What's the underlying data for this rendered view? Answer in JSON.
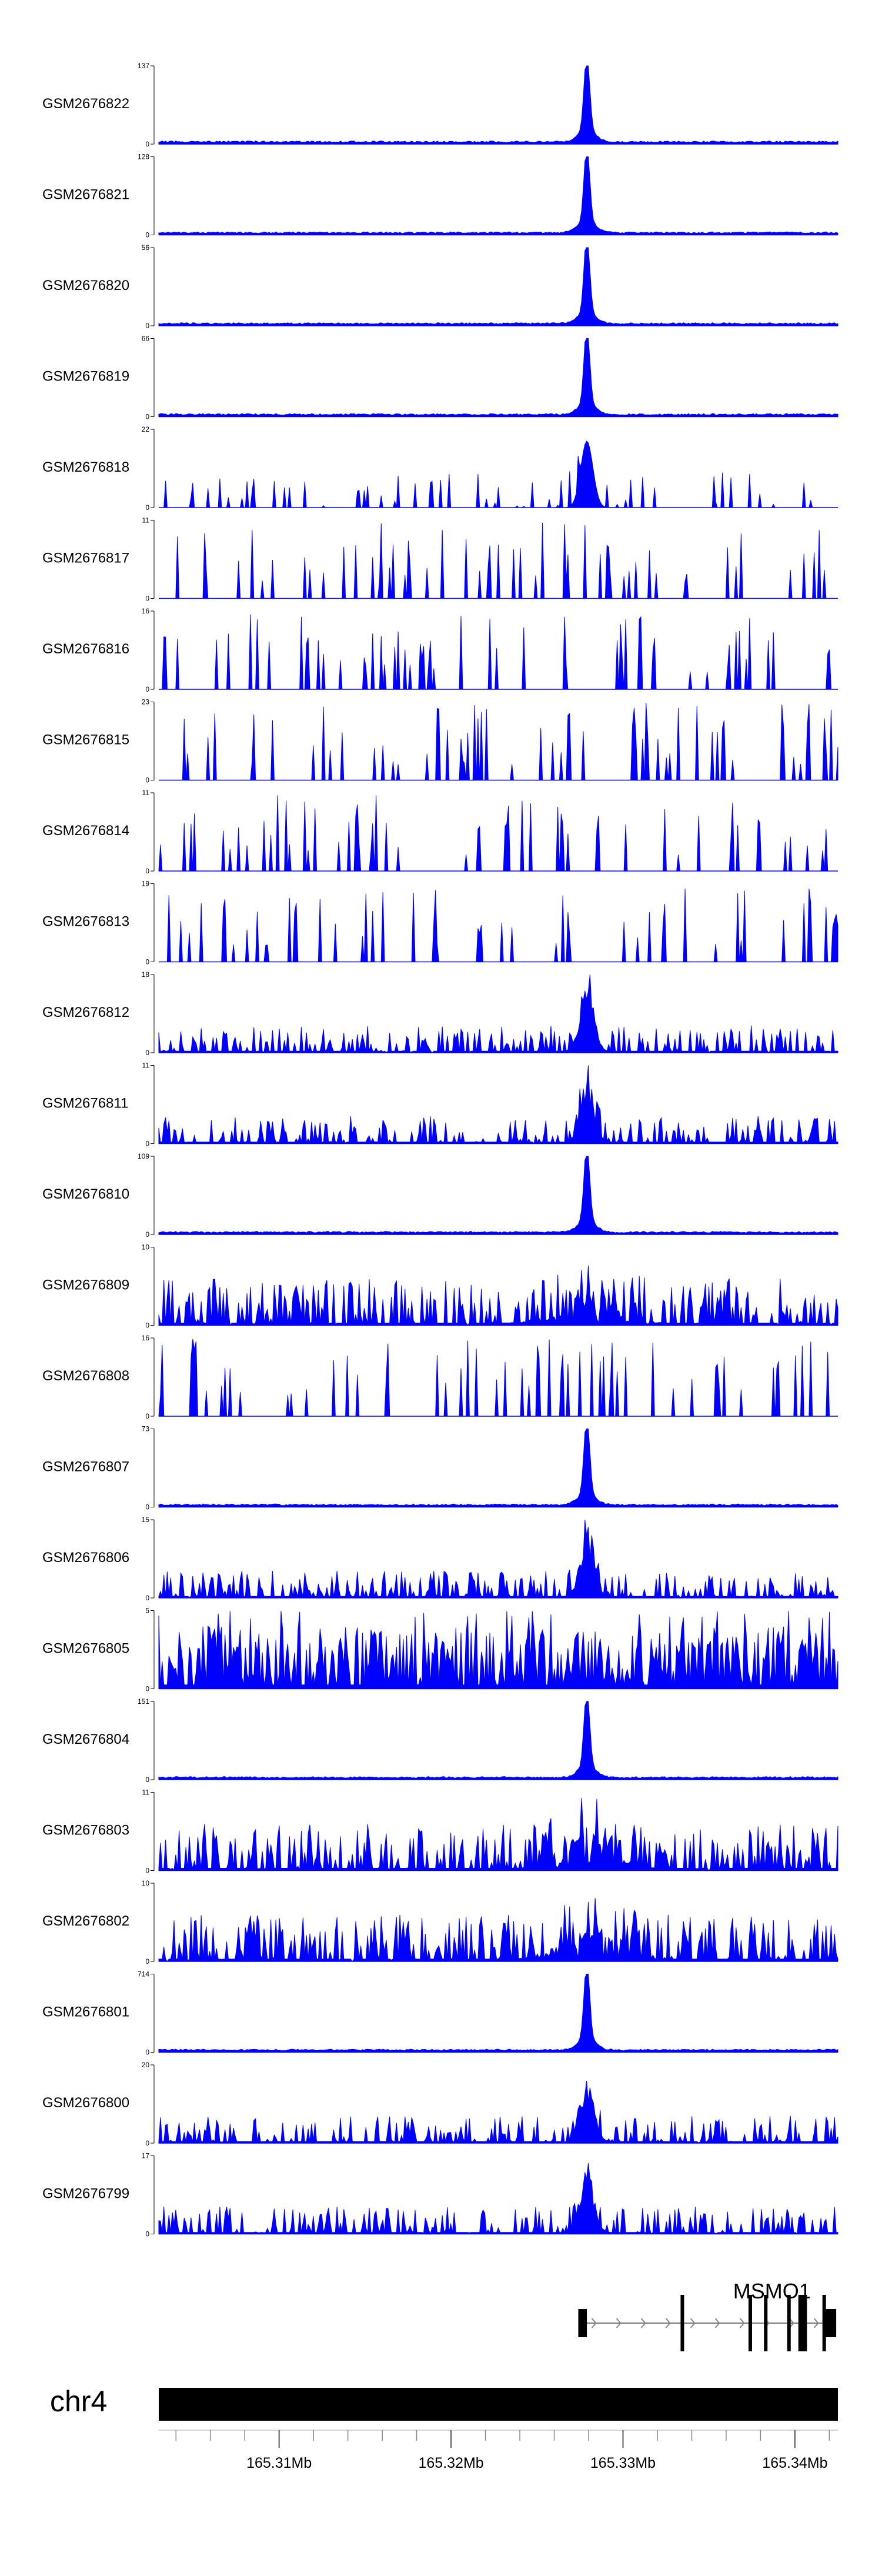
{
  "chart_data": {
    "type": "area",
    "title": "",
    "xlabel": "",
    "ylabel": "",
    "chromosome": "chr4",
    "xlim": [
      165303000,
      165342500
    ],
    "x_ticks": [
      165310000,
      165320000,
      165330000,
      165340000
    ],
    "x_tick_labels": [
      "165.31Mb",
      "165.32Mb",
      "165.33Mb",
      "165.34Mb"
    ],
    "fill_color": "#0000ff",
    "series": [
      {
        "name": "GSM2676822",
        "ymax": 137,
        "max_label": "137",
        "min_label": "0",
        "pattern": "peak"
      },
      {
        "name": "GSM2676821",
        "ymax": 128,
        "max_label": "128",
        "min_label": "0",
        "pattern": "peak"
      },
      {
        "name": "GSM2676820",
        "ymax": 56,
        "max_label": "56",
        "min_label": "0",
        "pattern": "peak"
      },
      {
        "name": "GSM2676819",
        "ymax": 66,
        "max_label": "66",
        "min_label": "0",
        "pattern": "peak"
      },
      {
        "name": "GSM2676818",
        "ymax": 22,
        "max_label": "22",
        "min_label": "0",
        "pattern": "sparse-peak"
      },
      {
        "name": "GSM2676817",
        "ymax": 11,
        "max_label": "11",
        "min_label": "0",
        "pattern": "sparse"
      },
      {
        "name": "GSM2676816",
        "ymax": 16,
        "max_label": "16",
        "min_label": "0",
        "pattern": "sparse"
      },
      {
        "name": "GSM2676815",
        "ymax": 23,
        "max_label": "23",
        "min_label": "0",
        "pattern": "sparse"
      },
      {
        "name": "GSM2676814",
        "ymax": 11,
        "max_label": "11",
        "min_label": "0",
        "pattern": "sparse"
      },
      {
        "name": "GSM2676813",
        "ymax": 19,
        "max_label": "19",
        "min_label": "0",
        "pattern": "sparse"
      },
      {
        "name": "GSM2676812",
        "ymax": 18,
        "max_label": "18",
        "min_label": "0",
        "pattern": "noisy-peak"
      },
      {
        "name": "GSM2676811",
        "ymax": 11,
        "max_label": "11",
        "min_label": "0",
        "pattern": "noisy-peak"
      },
      {
        "name": "GSM2676810",
        "ymax": 109,
        "max_label": "109",
        "min_label": "0",
        "pattern": "peak"
      },
      {
        "name": "GSM2676809",
        "ymax": 10,
        "max_label": "10",
        "min_label": "0",
        "pattern": "noisy"
      },
      {
        "name": "GSM2676808",
        "ymax": 16,
        "max_label": "16",
        "min_label": "0",
        "pattern": "sparse"
      },
      {
        "name": "GSM2676807",
        "ymax": 73,
        "max_label": "73",
        "min_label": "0",
        "pattern": "peak"
      },
      {
        "name": "GSM2676806",
        "ymax": 15,
        "max_label": "15",
        "min_label": "0",
        "pattern": "noisy-peak"
      },
      {
        "name": "GSM2676805",
        "ymax": 5,
        "max_label": "5",
        "min_label": "0",
        "pattern": "dense"
      },
      {
        "name": "GSM2676804",
        "ymax": 151,
        "max_label": "151",
        "min_label": "0",
        "pattern": "peak"
      },
      {
        "name": "GSM2676803",
        "ymax": 11,
        "max_label": "11",
        "min_label": "0",
        "pattern": "noisy"
      },
      {
        "name": "GSM2676802",
        "ymax": 10,
        "max_label": "10",
        "min_label": "0",
        "pattern": "noisy"
      },
      {
        "name": "GSM2676801",
        "ymax": 714,
        "max_label": "714",
        "min_label": "0",
        "pattern": "peak"
      },
      {
        "name": "GSM2676800",
        "ymax": 20,
        "max_label": "20",
        "min_label": "0",
        "pattern": "noisy-peak"
      },
      {
        "name": "GSM2676799",
        "ymax": 17,
        "max_label": "17",
        "min_label": "0",
        "pattern": "noisy-peak"
      }
    ],
    "gene": {
      "name": "MSMO1",
      "strand": "+",
      "start": 165327400,
      "end": 165342400,
      "exons": [
        [
          165327400,
          165327900
        ],
        [
          165333350,
          165333550
        ],
        [
          165337300,
          165337450
        ],
        [
          165338200,
          165338350
        ],
        [
          165339550,
          165339700
        ],
        [
          165340200,
          165340700
        ],
        [
          165341600,
          165341800
        ],
        [
          165341800,
          165342400
        ]
      ]
    }
  }
}
